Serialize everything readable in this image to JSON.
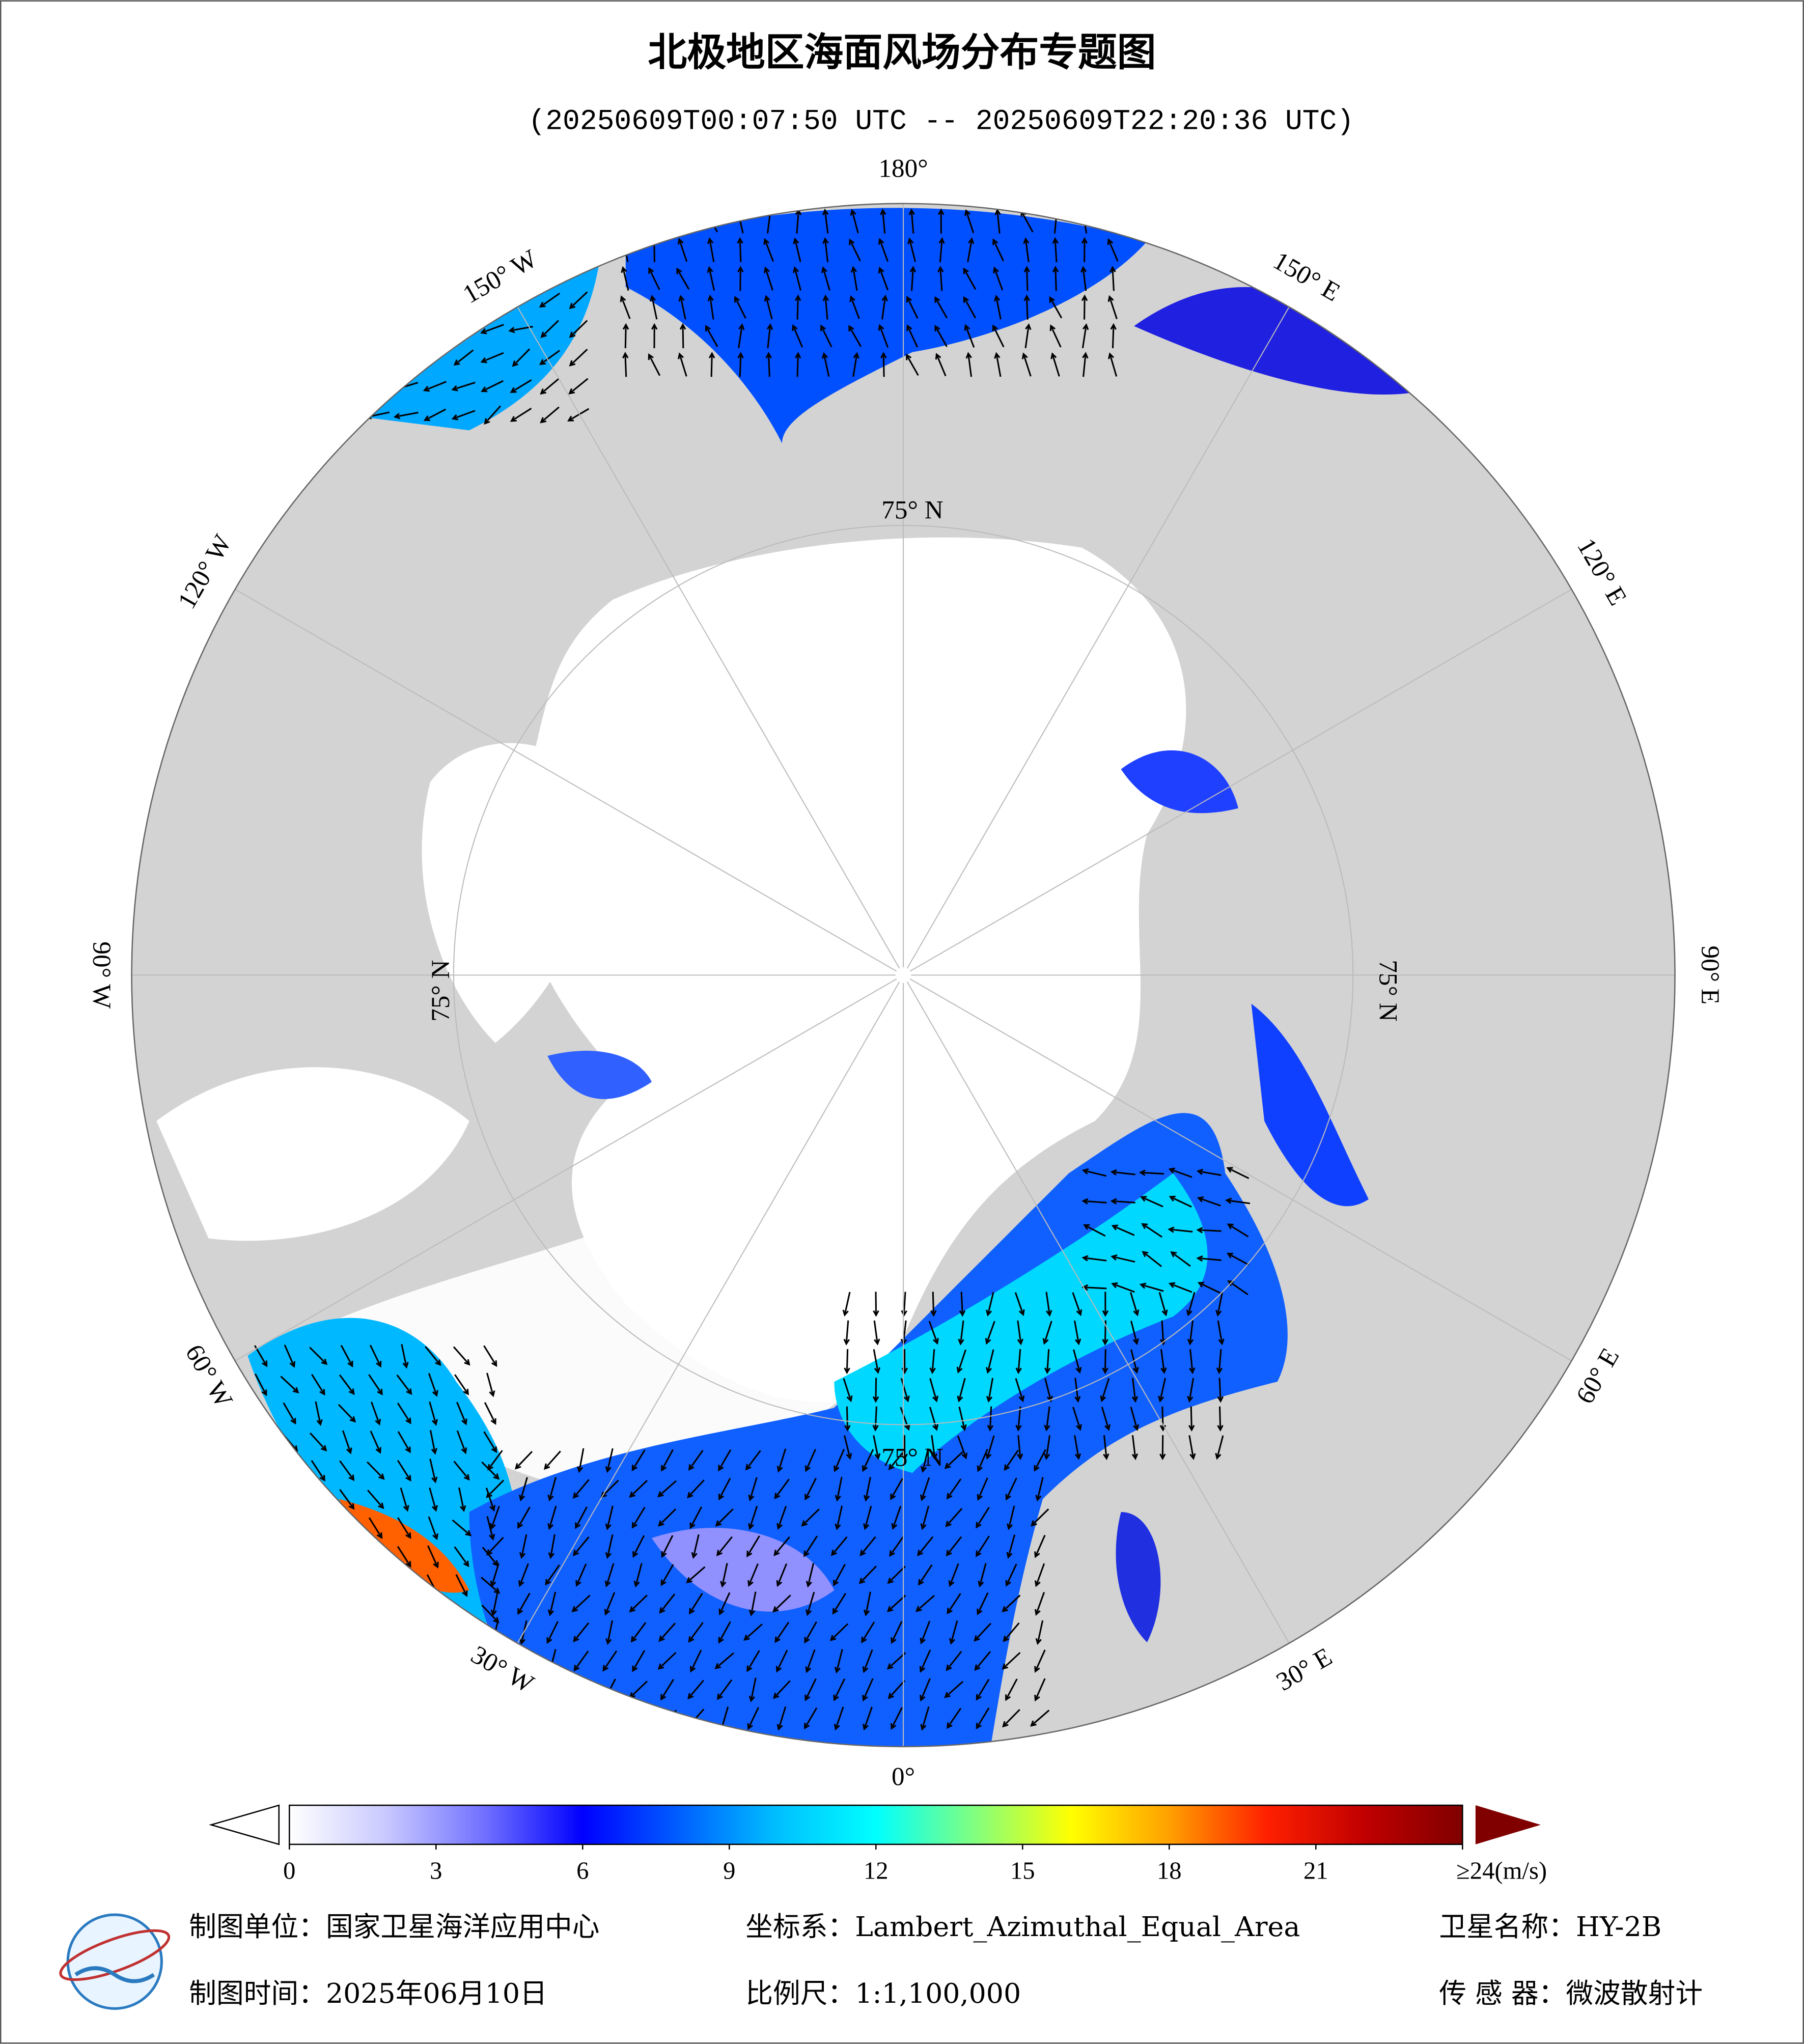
{
  "header": {
    "title": "北极地区海面风场分布专题图",
    "subtitle": "(20250609T00:07:50 UTC -- 20250609T22:20:36 UTC)"
  },
  "map": {
    "meridian_labels": [
      "180°",
      "150° E",
      "120° E",
      "90° E",
      "60° E",
      "30° E",
      "0°",
      "30° W",
      "60° W",
      "90° W",
      "120° W",
      "150° W"
    ],
    "parallel_labels": [
      "75° N",
      "75° N",
      "75° N",
      "75° N"
    ]
  },
  "colorbar": {
    "lim": [
      0,
      24
    ],
    "ticks": [
      0,
      3,
      6,
      9,
      12,
      15,
      18,
      21,
      {
        "value": 24,
        "label": "≥24(m/s)"
      }
    ],
    "colors": [
      "#ffffff",
      "#c8c8ff",
      "#7070ff",
      "#0000ff",
      "#0060ff",
      "#00c0ff",
      "#00ffff",
      "#80ff80",
      "#ffff00",
      "#ffa000",
      "#ff2000",
      "#c00000",
      "#800000"
    ]
  },
  "footer": {
    "unit": "制图单位：国家卫星海洋应用中心",
    "crs": "坐标系：Lambert_Azimuthal_Equal_Area",
    "satellite": "卫星名称：HY-2B",
    "date": "制图时间：2025年06月10日",
    "scale": "比例尺：1:1,100,000",
    "sensor": "传 感 器：微波散射计"
  }
}
